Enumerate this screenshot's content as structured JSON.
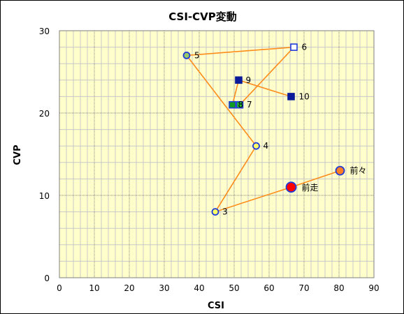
{
  "chart_data": {
    "type": "scatter",
    "title": "CSI-CVP変動",
    "xlabel": "CSI",
    "ylabel": "CVP",
    "xlim": [
      0,
      90
    ],
    "ylim": [
      0,
      30
    ],
    "xticks": [
      0,
      10,
      20,
      30,
      40,
      50,
      60,
      70,
      80,
      90
    ],
    "yticks": [
      0,
      10,
      20,
      30
    ],
    "grid": true,
    "colors": {
      "plot_bg": "#ffffcc",
      "line": "#ff8c1a",
      "grid_major": "#808080",
      "grid_minor": "#c8c8c8"
    },
    "path_order": [
      "前々",
      "前走",
      "3",
      "4",
      "5",
      "6",
      "7",
      "8",
      "9",
      "10"
    ],
    "points": [
      {
        "label": "前々",
        "x": 80.3,
        "y": 13.0,
        "marker": "circle-large",
        "fill": "#ff7f27",
        "stroke": "#1f3bd9"
      },
      {
        "label": "前走",
        "x": 66.3,
        "y": 11.0,
        "marker": "circle-xlarge",
        "fill": "#ff0000",
        "stroke": "#1f3bd9"
      },
      {
        "label": "3",
        "x": 44.6,
        "y": 8.0,
        "marker": "circle",
        "fill": "#ffff66",
        "stroke": "#1f3bd9"
      },
      {
        "label": "4",
        "x": 56.3,
        "y": 16.0,
        "marker": "circle",
        "fill": "#ffff66",
        "stroke": "#1f3bd9"
      },
      {
        "label": "5",
        "x": 36.4,
        "y": 27.0,
        "marker": "circle",
        "fill": "#99cc66",
        "stroke": "#1f3bd9"
      },
      {
        "label": "6",
        "x": 67.1,
        "y": 28.0,
        "marker": "square-open",
        "fill": "#ffffff",
        "stroke": "#1f3bd9"
      },
      {
        "label": "7",
        "x": 51.6,
        "y": 21.0,
        "marker": "square",
        "fill": "#22bb33",
        "stroke": "#1f3bd9"
      },
      {
        "label": "8",
        "x": 49.5,
        "y": 21.0,
        "marker": "square",
        "fill": "#119922",
        "stroke": "#1f3bd9"
      },
      {
        "label": "9",
        "x": 51.3,
        "y": 24.0,
        "marker": "square",
        "fill": "#0a1a99",
        "stroke": "#0a1a99"
      },
      {
        "label": "10",
        "x": 66.3,
        "y": 22.0,
        "marker": "square",
        "fill": "#0a1a99",
        "stroke": "#0a1a99"
      }
    ]
  }
}
